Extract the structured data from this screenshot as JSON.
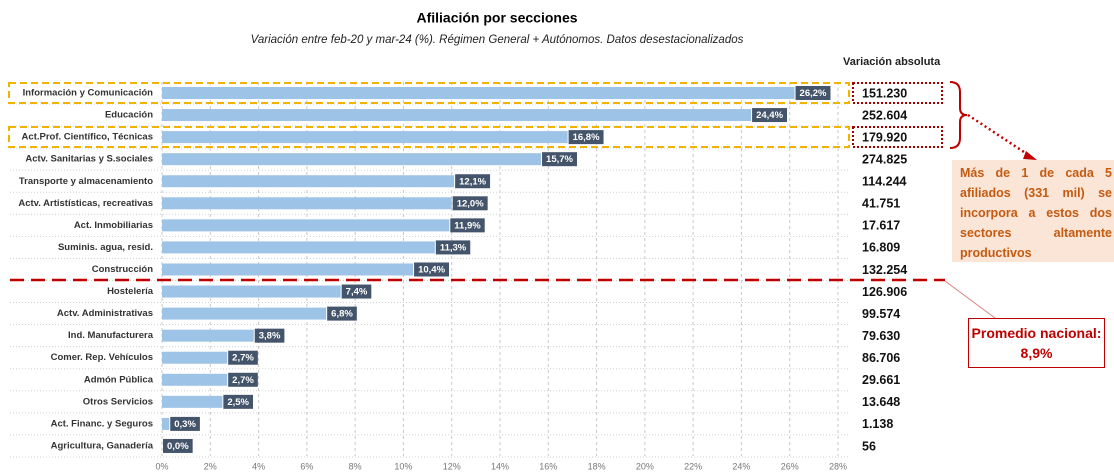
{
  "chart_data": {
    "type": "bar",
    "orientation": "horizontal",
    "title": "Afiliación por secciones",
    "subtitle": "Variación entre feb-20 y mar-24 (%). Régimen General + Autónomos. Datos desestacionalizados",
    "categories": [
      "Información y Comunicación",
      "Educación",
      "Act.Prof. Científico, Técnicas",
      "Actv. Sanitarias y S.sociales",
      "Transporte y almacenamiento",
      "Actv. Artistísticas, recreativas",
      "Act. Inmobiliarias",
      "Suminis. agua, resid.",
      "Construcción",
      "Hostelería",
      "Actv. Administrativas",
      "Ind. Manufacturera",
      "Comer. Rep. Vehículos",
      "Admón Pública",
      "Otros Servicios",
      "Act. Financ. y Seguros",
      "Agricultura, Ganadería"
    ],
    "values": [
      26.2,
      24.4,
      16.8,
      15.7,
      12.1,
      12.0,
      11.9,
      11.3,
      10.4,
      7.4,
      6.8,
      3.8,
      2.7,
      2.7,
      2.5,
      0.3,
      0.0
    ],
    "value_labels": [
      "26,2%",
      "24,4%",
      "16,8%",
      "15,7%",
      "12,1%",
      "12,0%",
      "11,9%",
      "11,3%",
      "10,4%",
      "7,4%",
      "6,8%",
      "3,8%",
      "2,7%",
      "2,7%",
      "2,5%",
      "0,3%",
      "0,0%"
    ],
    "color": "#9dc3e6",
    "label_color": "#44546a",
    "xlim": [
      0,
      28
    ],
    "xticks": [
      {
        "value": 0,
        "label": "0%"
      },
      {
        "value": 2,
        "label": "2%"
      },
      {
        "value": 4,
        "label": "4%"
      },
      {
        "value": 6,
        "label": "6%"
      },
      {
        "value": 8,
        "label": "8%"
      },
      {
        "value": 10,
        "label": "10%"
      },
      {
        "value": 12,
        "label": "12%"
      },
      {
        "value": 14,
        "label": "14%"
      },
      {
        "value": 16,
        "label": "16%"
      },
      {
        "value": 18,
        "label": "18%"
      },
      {
        "value": 20,
        "label": "20%"
      },
      {
        "value": 22,
        "label": "22%"
      },
      {
        "value": 24,
        "label": "24%"
      },
      {
        "value": 26,
        "label": "26%"
      },
      {
        "value": 28,
        "label": "28%"
      }
    ],
    "grid": true,
    "absolute_variation": {
      "title": "Variación absoluta",
      "labels": [
        "151.230",
        "252.604",
        "179.920",
        "274.825",
        "114.244",
        "41.751",
        "17.617",
        "16.809",
        "132.254",
        "126.906",
        "99.574",
        "79.630",
        "86.706",
        "29.661",
        "13.648",
        "1.138",
        "56"
      ]
    },
    "annotations": [
      "Más de 1 de cada 5 afiliados (331 mil) se incorpora a estos dos sectores altamente productivos",
      "Promedio nacional: 8,9%"
    ]
  }
}
